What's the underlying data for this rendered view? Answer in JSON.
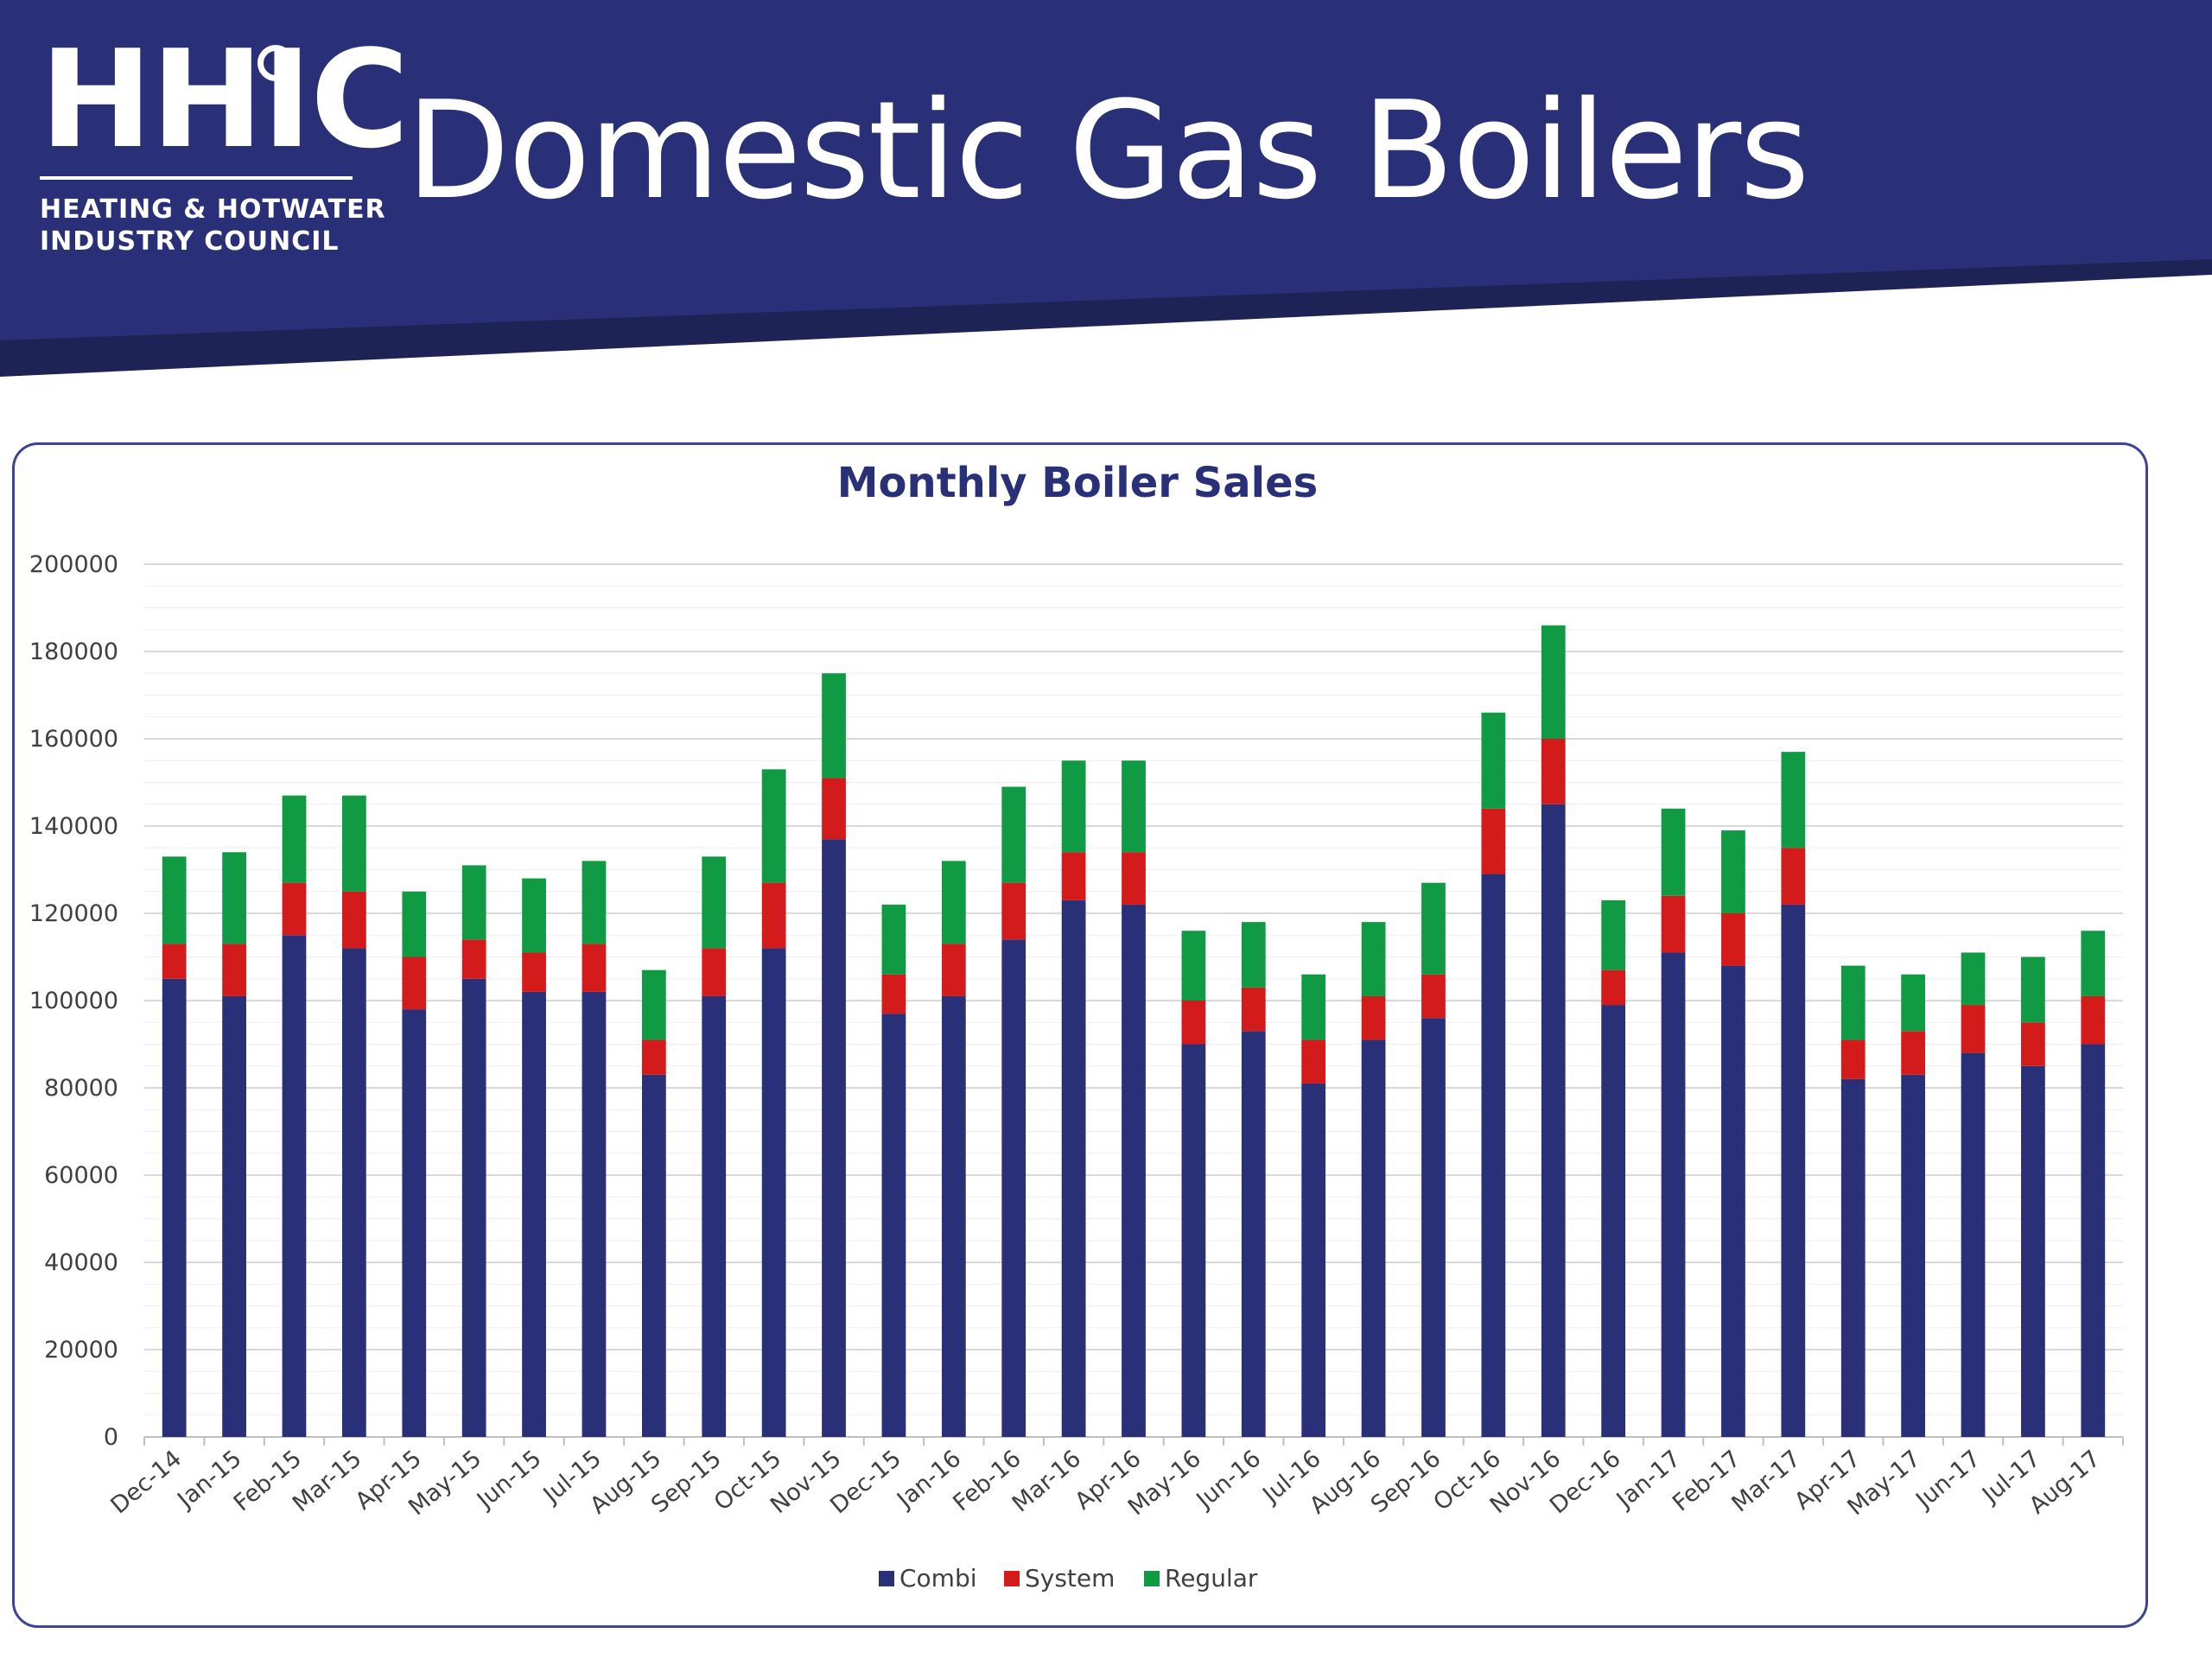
{
  "header": {
    "logo_mark": "HHIC",
    "logo_line1": "HEATING & HOTWATER",
    "logo_line2": "INDUSTRY COUNCIL",
    "page_title": "Domestic Gas Boilers"
  },
  "colors": {
    "banner": "#2a3077",
    "banner_shadow": "#1e2356",
    "panel_border": "#3c4398",
    "combi": "#2a3077",
    "system": "#d41b1b",
    "regular": "#0f9a43",
    "gridline": "#d9d9d9",
    "axis_text": "#404040"
  },
  "chart_data": {
    "type": "bar",
    "stacked": true,
    "title": "Monthly Boiler Sales",
    "xlabel": "",
    "ylabel": "",
    "ylim": [
      0,
      200000
    ],
    "yticks": [
      0,
      20000,
      40000,
      60000,
      80000,
      100000,
      120000,
      140000,
      160000,
      180000,
      200000
    ],
    "grid": true,
    "legend_position": "bottom",
    "categories": [
      "Dec-14",
      "Jan-15",
      "Feb-15",
      "Mar-15",
      "Apr-15",
      "May-15",
      "Jun-15",
      "Jul-15",
      "Aug-15",
      "Sep-15",
      "Oct-15",
      "Nov-15",
      "Dec-15",
      "Jan-16",
      "Feb-16",
      "Mar-16",
      "Apr-16",
      "May-16",
      "Jun-16",
      "Jul-16",
      "Aug-16",
      "Sep-16",
      "Oct-16",
      "Nov-16",
      "Dec-16",
      "Jan-17",
      "Feb-17",
      "Mar-17",
      "Apr-17",
      "May-17",
      "Jun-17",
      "Jul-17",
      "Aug-17"
    ],
    "series": [
      {
        "name": "Combi",
        "color": "#2a3077",
        "values": [
          105000,
          101000,
          115000,
          112000,
          98000,
          105000,
          102000,
          102000,
          83000,
          101000,
          112000,
          137000,
          97000,
          101000,
          114000,
          123000,
          122000,
          90000,
          93000,
          81000,
          91000,
          96000,
          129000,
          145000,
          99000,
          111000,
          108000,
          122000,
          82000,
          83000,
          88000,
          85000,
          90000
        ]
      },
      {
        "name": "System",
        "color": "#d41b1b",
        "values": [
          8000,
          12000,
          12000,
          13000,
          12000,
          9000,
          9000,
          11000,
          8000,
          11000,
          15000,
          14000,
          9000,
          12000,
          13000,
          11000,
          12000,
          10000,
          10000,
          10000,
          10000,
          10000,
          15000,
          15000,
          8000,
          13000,
          12000,
          13000,
          9000,
          10000,
          11000,
          10000,
          11000
        ]
      },
      {
        "name": "Regular",
        "color": "#0f9a43",
        "values": [
          20000,
          21000,
          20000,
          22000,
          15000,
          17000,
          17000,
          19000,
          16000,
          21000,
          26000,
          24000,
          16000,
          19000,
          22000,
          21000,
          21000,
          16000,
          15000,
          15000,
          17000,
          21000,
          22000,
          26000,
          16000,
          20000,
          19000,
          22000,
          17000,
          13000,
          12000,
          15000,
          15000
        ]
      }
    ]
  }
}
